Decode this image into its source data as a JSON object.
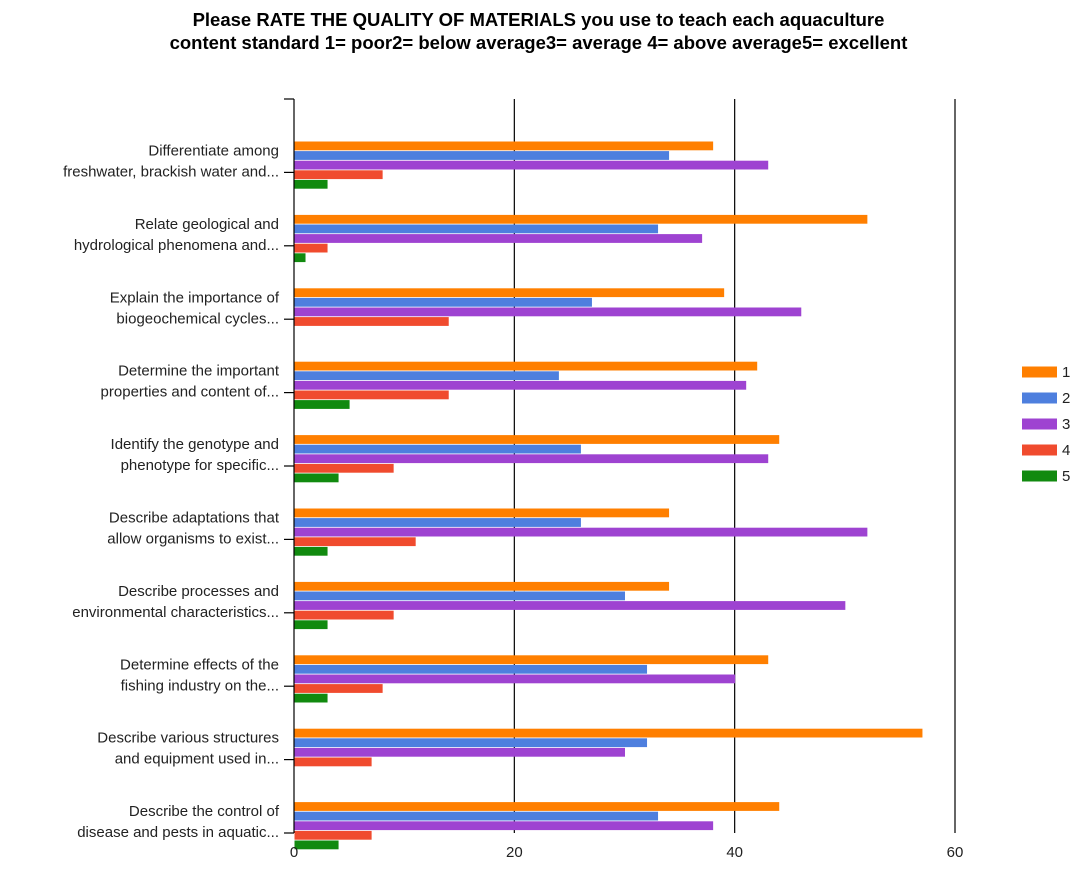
{
  "chart_data": {
    "type": "bar",
    "orientation": "horizontal",
    "title_lines": [
      "Please RATE THE QUALITY OF MATERIALS you use to teach each aquaculture",
      "content standard 1= poor2= below average3= average 4= above average5= excellent"
    ],
    "categories": [
      [
        "Differentiate among",
        "freshwater, brackish water and..."
      ],
      [
        "Relate geological and",
        "hydrological phenomena and..."
      ],
      [
        "Explain the importance of",
        "biogeochemical cycles..."
      ],
      [
        "Determine the important",
        "properties and content of..."
      ],
      [
        "Identify the genotype and",
        "phenotype for specific..."
      ],
      [
        "Describe adaptations that",
        "allow organisms to exist..."
      ],
      [
        "Describe processes and",
        "environmental characteristics..."
      ],
      [
        "Determine effects of the",
        "fishing industry on the..."
      ],
      [
        "Describe various structures",
        "and equipment used in..."
      ],
      [
        "Describe the control of",
        "disease and pests in aquatic..."
      ]
    ],
    "series": [
      {
        "name": "1",
        "color": "#ff7f00",
        "values": [
          38,
          52,
          39,
          42,
          44,
          34,
          34,
          43,
          57,
          44
        ]
      },
      {
        "name": "2",
        "color": "#4e7fde",
        "values": [
          34,
          33,
          27,
          24,
          26,
          26,
          30,
          32,
          32,
          33
        ]
      },
      {
        "name": "3",
        "color": "#9e43d1",
        "values": [
          43,
          37,
          46,
          41,
          43,
          52,
          50,
          40,
          30,
          38
        ]
      },
      {
        "name": "4",
        "color": "#f04b2e",
        "values": [
          8,
          3,
          14,
          14,
          9,
          11,
          9,
          8,
          7,
          7
        ]
      },
      {
        "name": "5",
        "color": "#118a0f",
        "values": [
          3,
          1,
          0,
          5,
          4,
          3,
          3,
          3,
          0,
          4
        ]
      }
    ],
    "xlim": [
      0,
      60
    ],
    "xticks": [
      0,
      20,
      40,
      60
    ],
    "grid": true,
    "legend_position": "right"
  }
}
